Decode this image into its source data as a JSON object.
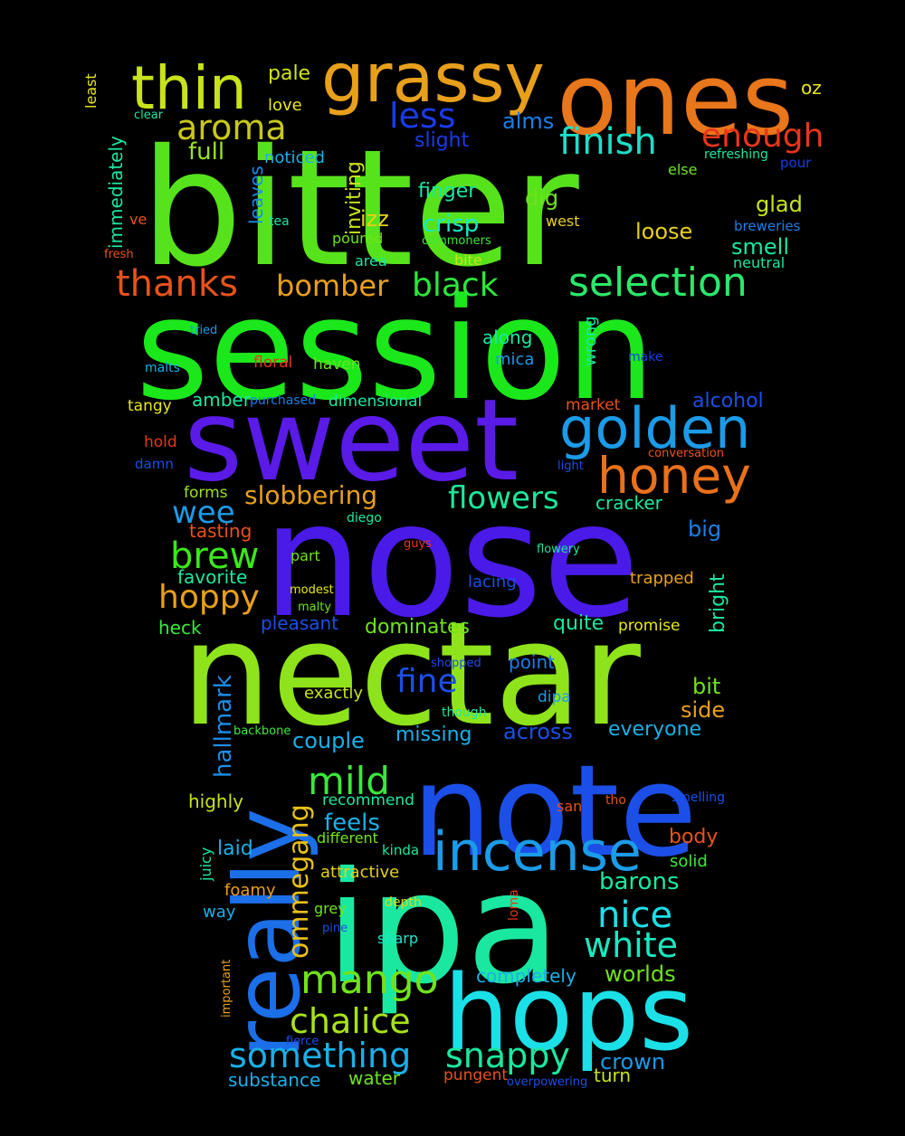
{
  "word_cloud": {
    "words": [
      {
        "text": "bitter",
        "color": "#57E31B"
      },
      {
        "text": "session",
        "color": "#1BE81B"
      },
      {
        "text": "nose",
        "color": "#4A1BE8"
      },
      {
        "text": "nectar",
        "color": "#8FE31B"
      },
      {
        "text": "sweet",
        "color": "#5A1BE8"
      },
      {
        "text": "ipa",
        "color": "#1BE8A0"
      },
      {
        "text": "note",
        "color": "#1B4FE8"
      },
      {
        "text": "ones",
        "color": "#E8761B"
      },
      {
        "text": "hops",
        "color": "#1BE0E8"
      },
      {
        "text": "grassy",
        "color": "#E8A01B"
      },
      {
        "text": "really",
        "color": "#1B6FE8"
      },
      {
        "text": "golden",
        "color": "#1B9BE8"
      },
      {
        "text": "incense",
        "color": "#1B9BE8"
      },
      {
        "text": "thin",
        "color": "#C8E31B"
      },
      {
        "text": "honey",
        "color": "#E8711B"
      },
      {
        "text": "selection",
        "color": "#2BE86A"
      },
      {
        "text": "finish",
        "color": "#1BE0C8"
      },
      {
        "text": "mango",
        "color": "#6FE31B"
      },
      {
        "text": "something",
        "color": "#1BB0E8"
      },
      {
        "text": "nice",
        "color": "#1BE0E8"
      },
      {
        "text": "chalice",
        "color": "#A8E31B"
      },
      {
        "text": "snappy",
        "color": "#1BE8A0"
      },
      {
        "text": "mild",
        "color": "#3BE83B"
      },
      {
        "text": "white",
        "color": "#1BE8C0"
      },
      {
        "text": "brew",
        "color": "#3BE81B"
      },
      {
        "text": "ommegang",
        "color": "#E8C01B"
      },
      {
        "text": "aroma",
        "color": "#C8C81B"
      },
      {
        "text": "thanks",
        "color": "#E8521B"
      },
      {
        "text": "black",
        "color": "#2BE83B"
      },
      {
        "text": "enough",
        "color": "#E8351B"
      },
      {
        "text": "less",
        "color": "#1B3BE8"
      },
      {
        "text": "flowers",
        "color": "#1BE89B"
      },
      {
        "text": "bomber",
        "color": "#E8A01B"
      },
      {
        "text": "hoppy",
        "color": "#E8A01B"
      },
      {
        "text": "slobbering",
        "color": "#E8A01B"
      },
      {
        "text": "fine",
        "color": "#1B4FE8"
      },
      {
        "text": "wee",
        "color": "#1B9BE8"
      },
      {
        "text": "hallmark",
        "color": "#1B8FE8"
      },
      {
        "text": "barons",
        "color": "#1BE8A0"
      },
      {
        "text": "pale",
        "color": "#D0E31B"
      },
      {
        "text": "full",
        "color": "#9BE31B"
      },
      {
        "text": "alms",
        "color": "#1B7FE8"
      },
      {
        "text": "slight",
        "color": "#1B3BE8"
      },
      {
        "text": "finger",
        "color": "#1BE8A0"
      },
      {
        "text": "crisp",
        "color": "#1BE8C8"
      },
      {
        "text": "dig",
        "color": "#6FE31B"
      },
      {
        "text": "glad",
        "color": "#C8E31B"
      },
      {
        "text": "smell",
        "color": "#1BE8A0"
      },
      {
        "text": "loose",
        "color": "#E8D01B"
      },
      {
        "text": "inviting",
        "color": "#C8E31B"
      },
      {
        "text": "immediately",
        "color": "#1BE8A0"
      },
      {
        "text": "leaves",
        "color": "#1B8FE8"
      },
      {
        "text": "love",
        "color": "#E8E81B"
      },
      {
        "text": "izz",
        "color": "#E8D01B"
      },
      {
        "text": "noticed",
        "color": "#1BB0E8"
      },
      {
        "text": "oz",
        "color": "#E8E81B"
      },
      {
        "text": "clear",
        "color": "#1BE8A0"
      },
      {
        "text": "least",
        "color": "#E8E81B"
      },
      {
        "text": "refreshing",
        "color": "#1BE8A0"
      },
      {
        "text": "else",
        "color": "#6FE31B"
      },
      {
        "text": "pour",
        "color": "#1B3BE8"
      },
      {
        "text": "west",
        "color": "#E8D01B"
      },
      {
        "text": "breweries",
        "color": "#1B7FE8"
      },
      {
        "text": "neutral",
        "color": "#1BE8A0"
      },
      {
        "text": "commoners",
        "color": "#3BE83B"
      },
      {
        "text": "bite",
        "color": "#C8E31B"
      },
      {
        "text": "poured",
        "color": "#6FE31B"
      },
      {
        "text": "area",
        "color": "#1BE8A0"
      },
      {
        "text": "tea",
        "color": "#1BE8A0"
      },
      {
        "text": "fresh",
        "color": "#E8521B"
      },
      {
        "text": "ve",
        "color": "#E8521B"
      },
      {
        "text": "along",
        "color": "#1BE8A0"
      },
      {
        "text": "wrong",
        "color": "#1BE8A0"
      },
      {
        "text": "tried",
        "color": "#1B9BE8"
      },
      {
        "text": "make",
        "color": "#1B3BE8"
      },
      {
        "text": "malts",
        "color": "#1BB0E8"
      },
      {
        "text": "floral",
        "color": "#E8351B"
      },
      {
        "text": "haven",
        "color": "#6FE31B"
      },
      {
        "text": "mica",
        "color": "#1B9BE8"
      },
      {
        "text": "amber",
        "color": "#1BE8A0"
      },
      {
        "text": "purchased",
        "color": "#1B7FE8"
      },
      {
        "text": "dimensional",
        "color": "#1BE8A0"
      },
      {
        "text": "alcohol",
        "color": "#1B4FE8"
      },
      {
        "text": "tangy",
        "color": "#E8E81B"
      },
      {
        "text": "market",
        "color": "#E8521B"
      },
      {
        "text": "hold",
        "color": "#E8351B"
      },
      {
        "text": "conversation",
        "color": "#E8521B"
      },
      {
        "text": "damn",
        "color": "#1B4FE8"
      },
      {
        "text": "light",
        "color": "#1B4FE8"
      },
      {
        "text": "forms",
        "color": "#9BE31B"
      },
      {
        "text": "cracker",
        "color": "#1BE8A0"
      },
      {
        "text": "diego",
        "color": "#1BE8A0"
      },
      {
        "text": "tasting",
        "color": "#E8521B"
      },
      {
        "text": "big",
        "color": "#1B7FE8"
      },
      {
        "text": "guys",
        "color": "#E8351B"
      },
      {
        "text": "flowery",
        "color": "#1BE8A0"
      },
      {
        "text": "bright",
        "color": "#1BE8A0"
      },
      {
        "text": "favorite",
        "color": "#1BE8A0"
      },
      {
        "text": "part",
        "color": "#6FE31B"
      },
      {
        "text": "lacing",
        "color": "#1B4FE8"
      },
      {
        "text": "trapped",
        "color": "#E8A01B"
      },
      {
        "text": "modest",
        "color": "#E8E81B"
      },
      {
        "text": "malty",
        "color": "#6FE31B"
      },
      {
        "text": "heck",
        "color": "#3BE83B"
      },
      {
        "text": "pleasant",
        "color": "#1B4FE8"
      },
      {
        "text": "dominates",
        "color": "#6FE31B"
      },
      {
        "text": "quite",
        "color": "#1BE8A0"
      },
      {
        "text": "promise",
        "color": "#E8E81B"
      },
      {
        "text": "shopped",
        "color": "#1B4FE8"
      },
      {
        "text": "point",
        "color": "#1B7FE8"
      },
      {
        "text": "exactly",
        "color": "#C8E31B"
      },
      {
        "text": "dipa",
        "color": "#1B9BE8"
      },
      {
        "text": "bit",
        "color": "#6FE31B"
      },
      {
        "text": "though",
        "color": "#1BE8A0"
      },
      {
        "text": "side",
        "color": "#E8A01B"
      },
      {
        "text": "backbone",
        "color": "#3BE83B"
      },
      {
        "text": "missing",
        "color": "#1BB0E8"
      },
      {
        "text": "across",
        "color": "#1B4FE8"
      },
      {
        "text": "everyone",
        "color": "#1BB0E8"
      },
      {
        "text": "couple",
        "color": "#1BB0E8"
      },
      {
        "text": "highly",
        "color": "#C8E31B"
      },
      {
        "text": "recommend",
        "color": "#1BE8A0"
      },
      {
        "text": "san",
        "color": "#E8521B"
      },
      {
        "text": "tho",
        "color": "#E8521B"
      },
      {
        "text": "smelling",
        "color": "#1B4FE8"
      },
      {
        "text": "feels",
        "color": "#1BB0E8"
      },
      {
        "text": "different",
        "color": "#6FE31B"
      },
      {
        "text": "body",
        "color": "#E8521B"
      },
      {
        "text": "laid",
        "color": "#1BB0E8"
      },
      {
        "text": "kinda",
        "color": "#1BE8A0"
      },
      {
        "text": "juicy",
        "color": "#1BE8A0"
      },
      {
        "text": "solid",
        "color": "#3BE83B"
      },
      {
        "text": "attractive",
        "color": "#E8D01B"
      },
      {
        "text": "foamy",
        "color": "#E8A01B"
      },
      {
        "text": "depth",
        "color": "#C8E31B"
      },
      {
        "text": "loma",
        "color": "#E8351B"
      },
      {
        "text": "way",
        "color": "#1BB0E8"
      },
      {
        "text": "grey",
        "color": "#6FE31B"
      },
      {
        "text": "pine",
        "color": "#1B4FE8"
      },
      {
        "text": "sharp",
        "color": "#1BE8C8"
      },
      {
        "text": "important",
        "color": "#E8A01B"
      },
      {
        "text": "completely",
        "color": "#1BB0E8"
      },
      {
        "text": "worlds",
        "color": "#6FE31B"
      },
      {
        "text": "fierce",
        "color": "#1B4FE8"
      },
      {
        "text": "crown",
        "color": "#1B9BE8"
      },
      {
        "text": "substance",
        "color": "#1BB0E8"
      },
      {
        "text": "water",
        "color": "#6FE31B"
      },
      {
        "text": "pungent",
        "color": "#E8521B"
      },
      {
        "text": "overpowering",
        "color": "#1B4FE8"
      },
      {
        "text": "turn",
        "color": "#C8E31B"
      }
    ]
  }
}
